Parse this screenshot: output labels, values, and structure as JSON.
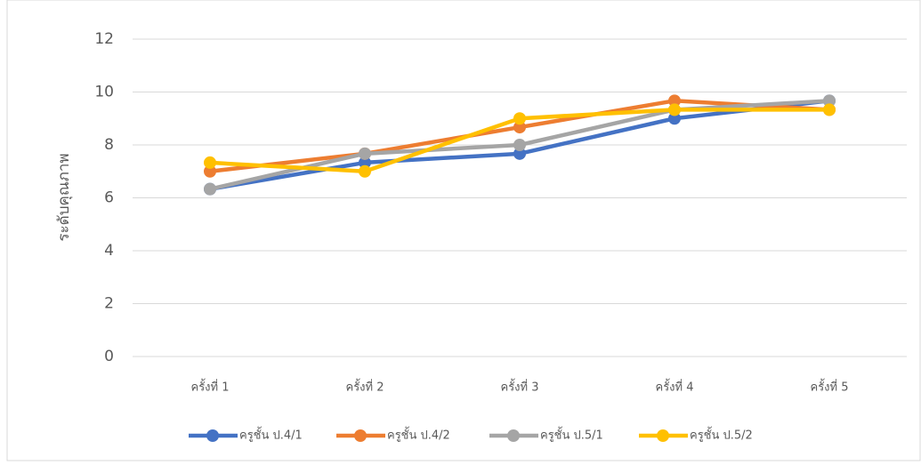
{
  "chart_data": {
    "type": "line",
    "y_label": "ระดับคุณภาพ",
    "categories": [
      "ครั้งที่ 1",
      "ครั้งที่ 2",
      "ครั้งที่ 3",
      "ครั้งที่ 4",
      "ครั้งที่ 5"
    ],
    "series": [
      {
        "name": "ครูชั้น ป.4/1",
        "color": "#4472c4",
        "values": [
          6.33,
          7.33,
          7.67,
          9,
          9.67
        ]
      },
      {
        "name": "ครูชั้น ป.4/2",
        "color": "#ed7d31",
        "values": [
          7,
          7.67,
          8.67,
          9.67,
          9.33
        ]
      },
      {
        "name": "ครูชั้น ป.5/1",
        "color": "#a5a5a5",
        "values": [
          6.33,
          7.67,
          8,
          9.33,
          9.67
        ]
      },
      {
        "name": "ครูชั้น ป.5/2",
        "color": "#ffc000",
        "values": [
          7.33,
          7,
          9,
          9.33,
          9.33
        ]
      }
    ],
    "ylim": [
      0,
      12
    ],
    "yticks": [
      0,
      2,
      4,
      6,
      8,
      10,
      12
    ],
    "grid": true,
    "legend": "bottom"
  }
}
